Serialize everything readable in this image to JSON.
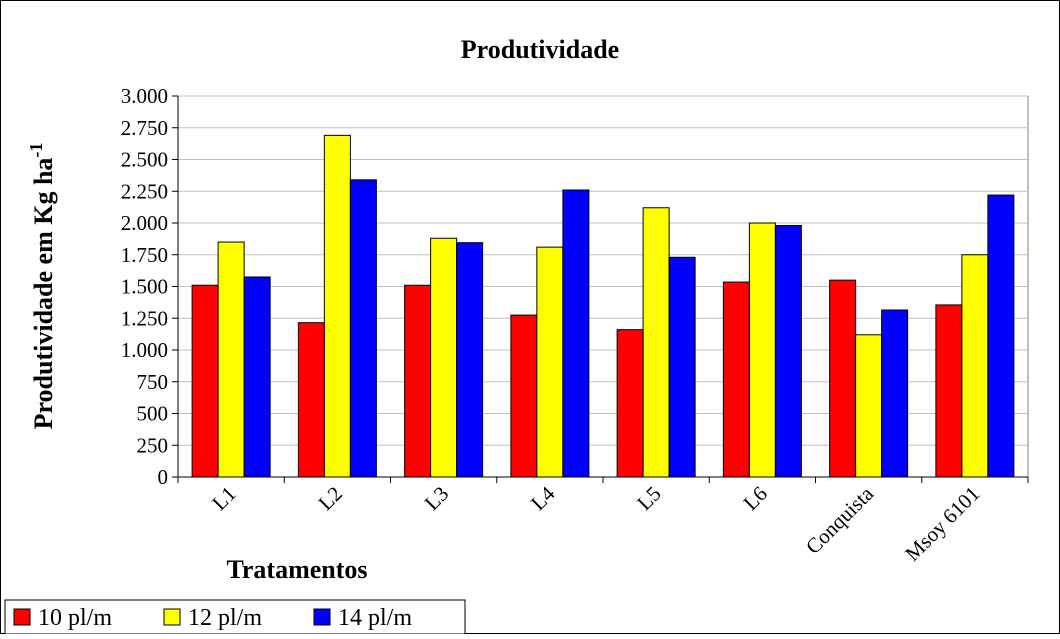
{
  "chart_data": {
    "type": "bar",
    "title": "Produtividade",
    "x_label": "Tratamentos",
    "y_label": "Produtividade em Kg ha",
    "y_label_sup": "-1",
    "categories": [
      "L1",
      "L2",
      "L3",
      "L4",
      "L5",
      "L6",
      "Conquista",
      "Msoy 6101"
    ],
    "series": [
      {
        "name": "10 pl/m",
        "color": "#ff0000",
        "values": [
          1510,
          1215,
          1510,
          1275,
          1160,
          1535,
          1550,
          1355
        ]
      },
      {
        "name": "12 pl/m",
        "color": "#ffff00",
        "values": [
          1850,
          2690,
          1880,
          1810,
          2120,
          2000,
          1120,
          1750
        ]
      },
      {
        "name": "14 pl/m",
        "color": "#0000ff",
        "values": [
          1575,
          2340,
          1845,
          2260,
          1730,
          1980,
          1315,
          2220
        ]
      }
    ],
    "ylim": [
      0,
      3000
    ],
    "yticks": [
      0,
      250,
      500,
      750,
      {
        "value": 1000,
        "label": "1.000"
      },
      {
        "value": 1250,
        "label": "1.250"
      },
      {
        "value": 1500,
        "label": "1.500"
      },
      {
        "value": 1750,
        "label": "1.750"
      },
      {
        "value": 2000,
        "label": "2.000"
      },
      {
        "value": 2250,
        "label": "2.250"
      },
      {
        "value": 2500,
        "label": "2.500"
      },
      {
        "value": 2750,
        "label": "2.750"
      },
      {
        "value": 3000,
        "label": "3.000"
      }
    ],
    "grid": true
  }
}
